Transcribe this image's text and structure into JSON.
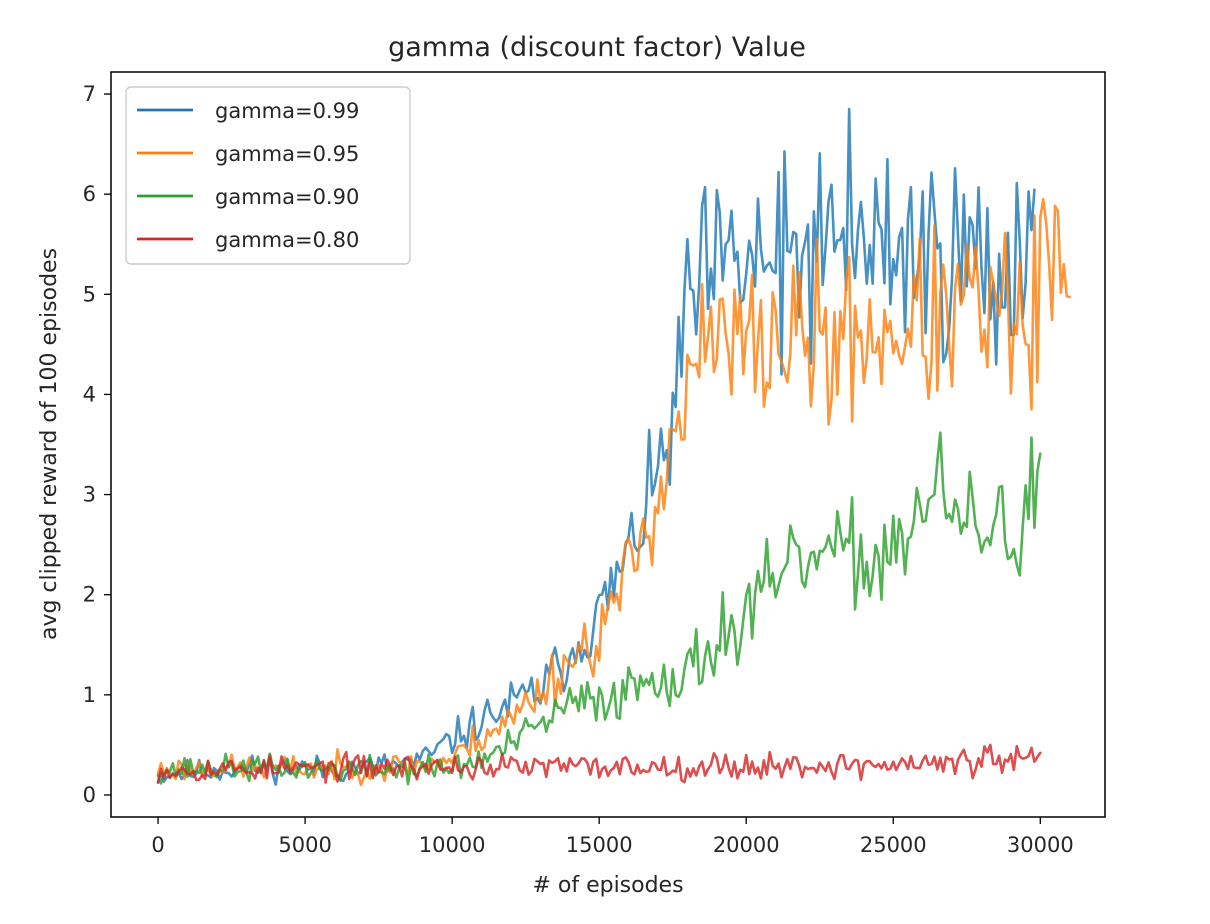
{
  "chart_data": {
    "type": "line",
    "title": "gamma (discount factor) Value",
    "xlabel": "# of episodes",
    "ylabel": "avg clipped reward of 100 episodes",
    "xlim": [
      -1600,
      32200
    ],
    "ylim": [
      -0.22,
      7.22
    ],
    "xticks": [
      0,
      5000,
      10000,
      15000,
      20000,
      25000,
      30000
    ],
    "yticks": [
      0,
      1,
      2,
      3,
      4,
      5,
      6,
      7
    ],
    "grid": false,
    "legend": "top-left",
    "series": [
      {
        "name": "gamma=0.99",
        "color": "#1f77b4",
        "x_start": 0,
        "x_step": 100,
        "x_end": 29800,
        "anchors": [
          [
            0,
            0.2
          ],
          [
            2000,
            0.25
          ],
          [
            4000,
            0.28
          ],
          [
            6000,
            0.25
          ],
          [
            8000,
            0.3
          ],
          [
            9000,
            0.35
          ],
          [
            10000,
            0.55
          ],
          [
            11000,
            0.75
          ],
          [
            12000,
            0.9
          ],
          [
            13000,
            1.05
          ],
          [
            14000,
            1.4
          ],
          [
            15000,
            1.8
          ],
          [
            16000,
            2.4
          ],
          [
            17000,
            3.2
          ],
          [
            17600,
            3.8
          ],
          [
            18000,
            4.7
          ],
          [
            18500,
            5.1
          ],
          [
            19500,
            5.25
          ],
          [
            21000,
            5.35
          ],
          [
            23000,
            5.4
          ],
          [
            25000,
            5.45
          ],
          [
            27000,
            5.4
          ],
          [
            28500,
            5.3
          ],
          [
            29800,
            5.6
          ]
        ],
        "amplitude": [
          [
            0,
            0.06
          ],
          [
            9000,
            0.07
          ],
          [
            14000,
            0.15
          ],
          [
            17000,
            0.25
          ],
          [
            18000,
            0.45
          ],
          [
            29800,
            0.55
          ]
        ],
        "seed": 11,
        "spikes": [
          [
            23500,
            6.85
          ],
          [
            18050,
            5.55
          ],
          [
            24800,
            6.35
          ],
          [
            28500,
            4.3
          ],
          [
            21200,
            4.2
          ]
        ]
      },
      {
        "name": "gamma=0.95",
        "color": "#ff7f0e",
        "x_start": 0,
        "x_step": 100,
        "x_end": 31000,
        "anchors": [
          [
            0,
            0.25
          ],
          [
            2000,
            0.27
          ],
          [
            4000,
            0.27
          ],
          [
            6000,
            0.27
          ],
          [
            8000,
            0.28
          ],
          [
            10000,
            0.35
          ],
          [
            11000,
            0.6
          ],
          [
            12000,
            0.75
          ],
          [
            13000,
            1.05
          ],
          [
            14000,
            1.35
          ],
          [
            15000,
            1.6
          ],
          [
            16000,
            2.2
          ],
          [
            17000,
            3.0
          ],
          [
            17500,
            3.6
          ],
          [
            18000,
            3.9
          ],
          [
            18500,
            4.45
          ],
          [
            20000,
            4.5
          ],
          [
            22000,
            4.55
          ],
          [
            24000,
            4.6
          ],
          [
            26000,
            4.7
          ],
          [
            28000,
            4.8
          ],
          [
            29500,
            4.7
          ],
          [
            30300,
            5.3
          ],
          [
            31000,
            4.8
          ]
        ],
        "amplitude": [
          [
            0,
            0.06
          ],
          [
            10000,
            0.07
          ],
          [
            14000,
            0.15
          ],
          [
            17000,
            0.25
          ],
          [
            18500,
            0.38
          ],
          [
            31000,
            0.45
          ]
        ],
        "seed": 23,
        "spikes": [
          [
            22800,
            3.7
          ],
          [
            29700,
            3.85
          ],
          [
            27500,
            5.5
          ],
          [
            30100,
            5.95
          ]
        ]
      },
      {
        "name": "gamma=0.90",
        "color": "#2ca02c",
        "x_start": 0,
        "x_step": 100,
        "x_end": 30000,
        "anchors": [
          [
            0,
            0.25
          ],
          [
            2000,
            0.27
          ],
          [
            4000,
            0.27
          ],
          [
            6000,
            0.26
          ],
          [
            8000,
            0.25
          ],
          [
            10000,
            0.27
          ],
          [
            11000,
            0.35
          ],
          [
            12000,
            0.5
          ],
          [
            13000,
            0.7
          ],
          [
            14000,
            0.9
          ],
          [
            15000,
            0.95
          ],
          [
            16000,
            1.05
          ],
          [
            17000,
            1.25
          ],
          [
            18000,
            1.15
          ],
          [
            19000,
            1.6
          ],
          [
            20000,
            1.8
          ],
          [
            21000,
            2.1
          ],
          [
            22000,
            2.35
          ],
          [
            23000,
            2.4
          ],
          [
            24000,
            2.35
          ],
          [
            25000,
            2.55
          ],
          [
            26000,
            2.8
          ],
          [
            26500,
            3.15
          ],
          [
            27000,
            2.7
          ],
          [
            28000,
            2.7
          ],
          [
            29000,
            2.6
          ],
          [
            29700,
            2.8
          ],
          [
            30000,
            3.3
          ]
        ],
        "amplitude": [
          [
            0,
            0.06
          ],
          [
            11000,
            0.07
          ],
          [
            15000,
            0.12
          ],
          [
            19000,
            0.2
          ],
          [
            30000,
            0.28
          ]
        ],
        "seed": 37,
        "spikes": [
          [
            29700,
            3.57
          ],
          [
            19700,
            1.3
          ],
          [
            24600,
            1.95
          ]
        ]
      },
      {
        "name": "gamma=0.80",
        "color": "#d62728",
        "x_start": 0,
        "x_step": 100,
        "x_end": 30000,
        "anchors": [
          [
            0,
            0.25
          ],
          [
            5000,
            0.27
          ],
          [
            10000,
            0.28
          ],
          [
            15000,
            0.28
          ],
          [
            20000,
            0.29
          ],
          [
            25000,
            0.3
          ],
          [
            30000,
            0.35
          ]
        ],
        "amplitude": [
          [
            0,
            0.06
          ],
          [
            30000,
            0.07
          ]
        ],
        "seed": 53,
        "spikes": [
          [
            28300,
            0.5
          ],
          [
            30000,
            0.42
          ]
        ]
      }
    ]
  }
}
